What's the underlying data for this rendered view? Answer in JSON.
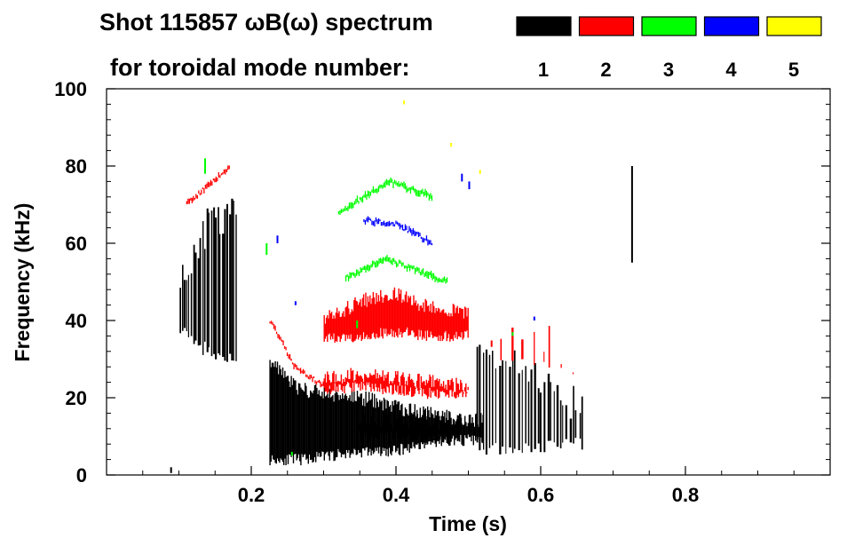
{
  "chart_data": {
    "type": "heatmap",
    "title_line1": "Shot 115857 ωB(ω) spectrum",
    "title_line2": "for toroidal mode number:",
    "xlabel": "Time (s)",
    "ylabel": "Frequency (kHz)",
    "xlim": [
      0.0,
      1.0
    ],
    "ylim": [
      0,
      100
    ],
    "xticks": [
      0.2,
      0.4,
      0.6,
      0.8
    ],
    "yticks": [
      0,
      20,
      40,
      60,
      80,
      100
    ],
    "legend": [
      {
        "label": "1",
        "color": "#000000"
      },
      {
        "label": "2",
        "color": "#ff0000"
      },
      {
        "label": "3",
        "color": "#00ff00"
      },
      {
        "label": "4",
        "color": "#0000ff"
      },
      {
        "label": "5",
        "color": "#ffff00"
      }
    ],
    "series": [
      {
        "name": "n=1",
        "color": "#000000",
        "bands": [
          {
            "t": [
              0.225,
              0.52
            ],
            "f_low": [
              4,
              4,
              5,
              6,
              6,
              8,
              9,
              9
            ],
            "f_high": [
              30,
              22,
              21,
              20,
              18,
              16,
              15,
              14
            ]
          },
          {
            "t": [
              0.345,
              0.49
            ],
            "f_low": [
              10,
              10,
              9,
              10
            ],
            "f_high": [
              15,
              14,
              14,
              13
            ]
          }
        ],
        "spikes": [
          {
            "t": [
              0.1,
              0.18
            ],
            "f_low": [
              35,
              30,
              28
            ],
            "f_high": [
              55,
              70,
              72
            ],
            "n": 26
          },
          {
            "t": [
              0.51,
              0.66
            ],
            "f_low": [
              5,
              5,
              6
            ],
            "f_high": [
              40,
              30,
              22
            ],
            "n": 34
          }
        ],
        "points": [
          {
            "t": 0.725,
            "f_low": 55,
            "f_high": 80
          },
          {
            "t": 0.088,
            "f_low": 0.5,
            "f_high": 2
          }
        ]
      },
      {
        "name": "n=2",
        "color": "#ff0000",
        "bands": [
          {
            "t": [
              0.3,
              0.5
            ],
            "f_low": [
              35,
              36,
              37,
              36,
              36
            ],
            "f_high": [
              40,
              45,
              47,
              43,
              42
            ]
          },
          {
            "t": [
              0.3,
              0.5
            ],
            "f_low": [
              22,
              23,
              22,
              21,
              21
            ],
            "f_high": [
              25,
              26,
              25,
              24,
              23
            ]
          }
        ],
        "curves": [
          {
            "t": [
              0.225,
              0.26,
              0.3
            ],
            "f": [
              40,
              28,
              23
            ],
            "w": 2
          },
          {
            "t": [
              0.11,
              0.17
            ],
            "f": [
              70,
              80
            ],
            "w": 2
          }
        ],
        "spikes": [
          {
            "t": [
              0.53,
              0.65
            ],
            "f_low": [
              30,
              28,
              26
            ],
            "f_high": [
              43,
              40,
              36
            ],
            "n": 9
          }
        ]
      },
      {
        "name": "n=3",
        "color": "#00ff00",
        "curves": [
          {
            "t": [
              0.32,
              0.39,
              0.45
            ],
            "f": [
              68,
              76,
              72
            ],
            "w": 3
          },
          {
            "t": [
              0.33,
              0.385,
              0.47
            ],
            "f": [
              51,
              56,
              50
            ],
            "w": 3
          }
        ],
        "points": [
          {
            "t": 0.135,
            "f_low": 78,
            "f_high": 82
          },
          {
            "t": 0.22,
            "f_low": 57,
            "f_high": 60
          },
          {
            "t": 0.255,
            "f_low": 5,
            "f_high": 6
          },
          {
            "t": 0.345,
            "f_low": 38,
            "f_high": 40
          },
          {
            "t": 0.56,
            "f_low": 36,
            "f_high": 37
          }
        ]
      },
      {
        "name": "n=4",
        "color": "#0000ff",
        "curves": [
          {
            "t": [
              0.355,
              0.4,
              0.45
            ],
            "f": [
              66,
              65,
              60
            ],
            "w": 2
          }
        ],
        "points": [
          {
            "t": 0.235,
            "f_low": 60,
            "f_high": 62
          },
          {
            "t": 0.26,
            "f_low": 44,
            "f_high": 45
          },
          {
            "t": 0.49,
            "f_low": 76,
            "f_high": 78
          },
          {
            "t": 0.5,
            "f_low": 74,
            "f_high": 76
          },
          {
            "t": 0.59,
            "f_low": 40,
            "f_high": 41
          }
        ]
      },
      {
        "name": "n=5",
        "color": "#ffff00",
        "points": [
          {
            "t": 0.41,
            "f_low": 96,
            "f_high": 97
          },
          {
            "t": 0.475,
            "f_low": 85,
            "f_high": 86
          },
          {
            "t": 0.515,
            "f_low": 78,
            "f_high": 79
          }
        ]
      }
    ]
  }
}
